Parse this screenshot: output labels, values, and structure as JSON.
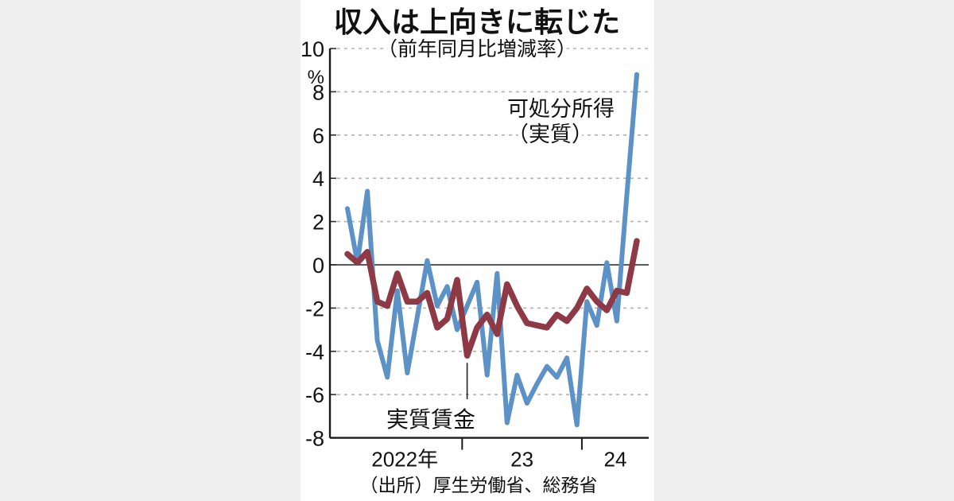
{
  "page": {
    "background_color": "#efeff0",
    "panel_color": "#ffffff"
  },
  "labels": {
    "unit": "%",
    "legend_line1": "可処分所得",
    "legend_line2": "（実質）",
    "wage_label": "実質賃金"
  },
  "chart_data": {
    "type": "line",
    "title": "収入は上向きに転じた",
    "subtitle": "（前年同月比増減率）",
    "unit": "%",
    "source": "（出所）厚生労働省、総務省",
    "ylim": [
      -8,
      10
    ],
    "yticks": [
      10,
      8,
      6,
      4,
      2,
      0,
      -2,
      -4,
      -6,
      -8
    ],
    "grid": "dashed-horizontal",
    "x": [
      "2022-01",
      "2022-02",
      "2022-03",
      "2022-04",
      "2022-05",
      "2022-06",
      "2022-07",
      "2022-08",
      "2022-09",
      "2022-10",
      "2022-11",
      "2022-12",
      "2023-01",
      "2023-02",
      "2023-03",
      "2023-04",
      "2023-05",
      "2023-06",
      "2023-07",
      "2023-08",
      "2023-09",
      "2023-10",
      "2023-11",
      "2023-12",
      "2024-01",
      "2024-02",
      "2024-03",
      "2024-04",
      "2024-05",
      "2024-06"
    ],
    "x_tick_labels": [
      "2022年",
      "23",
      "24"
    ],
    "series": [
      {
        "name": "可処分所得（実質）",
        "color": "#5d92c7",
        "values": [
          2.6,
          0.1,
          3.4,
          -3.5,
          -5.2,
          -1.2,
          -5.0,
          -2.4,
          0.2,
          -1.9,
          -1.0,
          -3.0,
          -1.9,
          -0.8,
          -5.1,
          -0.4,
          -7.3,
          -5.1,
          -6.4,
          -5.5,
          -4.7,
          -5.2,
          -4.3,
          -7.4,
          -1.7,
          -2.8,
          0.1,
          -2.6,
          3.2,
          8.8
        ]
      },
      {
        "name": "実質賃金",
        "color": "#8d3a46",
        "values": [
          0.5,
          0.1,
          0.6,
          -1.7,
          -1.9,
          -0.4,
          -1.7,
          -1.7,
          -1.3,
          -2.9,
          -2.5,
          -0.7,
          -4.2,
          -2.9,
          -2.3,
          -3.2,
          -0.9,
          -1.9,
          -2.7,
          -2.8,
          -2.9,
          -2.3,
          -2.6,
          -2.0,
          -1.1,
          -1.7,
          -2.1,
          -1.2,
          -1.3,
          1.1
        ]
      }
    ],
    "annotations": [
      {
        "text": "実質賃金",
        "series": "実質賃金",
        "month": "2023-01",
        "value": -4.2,
        "style": "callout-line-below"
      },
      {
        "text": "可処分所得（実質）",
        "series": "可処分所得（実質）",
        "style": "inline-label"
      }
    ],
    "legend_position": "inside-top-right",
    "grid_color": "#b3b3b3",
    "zero_line_color": "#595959",
    "axis_color": "#1a1a1a"
  }
}
